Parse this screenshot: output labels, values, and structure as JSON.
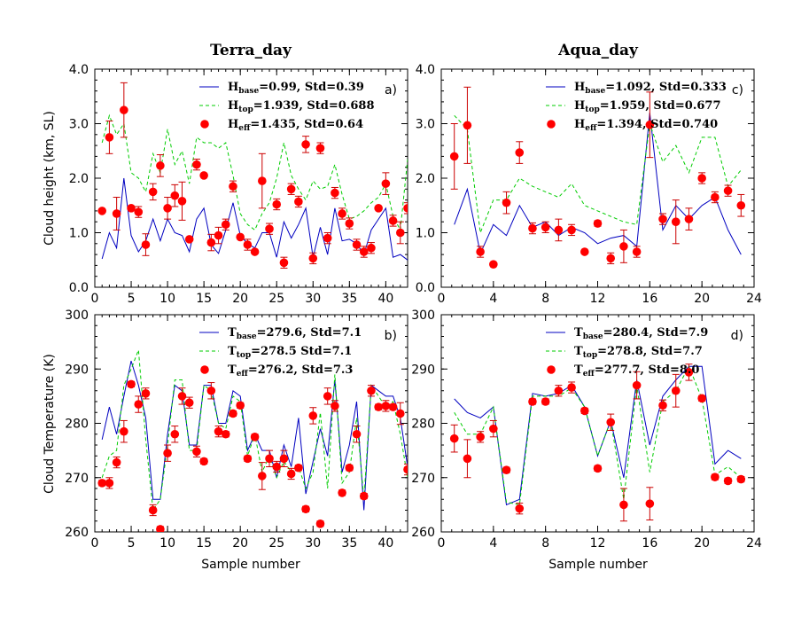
{
  "colors": {
    "base": "#0000c0",
    "top": "#00cc00",
    "eff": "#ff0000",
    "errorbar": "#cc0000",
    "axis": "#000000"
  },
  "columns": [
    {
      "title": "Terra_day"
    },
    {
      "title": "Aqua_day"
    }
  ],
  "ylabels": {
    "top": "Cloud height (km, SL)",
    "bottom": "Cloud Temperature (K)"
  },
  "xlabel": "Sample number",
  "chart_data": [
    {
      "type": "line",
      "panel": "a)",
      "title": "Terra_day",
      "ylabel": "Cloud height (km, SL)",
      "xlim": [
        0,
        43
      ],
      "ylim": [
        0,
        4
      ],
      "xticks": [
        0,
        5,
        10,
        15,
        20,
        25,
        30,
        35,
        40
      ],
      "yticks": [
        0.0,
        1.0,
        2.0,
        3.0,
        4.0
      ],
      "ytick_labels": [
        "0.0",
        "1.0",
        "2.0",
        "3.0",
        "4.0"
      ],
      "x": [
        1,
        2,
        3,
        4,
        5,
        6,
        7,
        8,
        9,
        10,
        11,
        12,
        13,
        14,
        15,
        16,
        17,
        18,
        19,
        20,
        21,
        22,
        23,
        24,
        25,
        26,
        27,
        28,
        29,
        30,
        31,
        32,
        33,
        34,
        35,
        36,
        37,
        38,
        39,
        40,
        41,
        42,
        43
      ],
      "legend": [
        {
          "prefix": "H",
          "sub": "base",
          "text": "=0.99, Std=0.39"
        },
        {
          "prefix": "H",
          "sub": "top",
          "text": "=1.939, Std=0.688"
        },
        {
          "prefix": "H",
          "sub": "eff",
          "text": "=1.435, Std=0.64"
        }
      ],
      "series": [
        {
          "name": "H_base",
          "style": "solid",
          "values": [
            0.52,
            1.0,
            0.72,
            2.0,
            0.95,
            0.65,
            0.85,
            1.25,
            0.85,
            1.25,
            1.0,
            0.95,
            0.65,
            1.25,
            1.45,
            0.78,
            0.62,
            1.05,
            1.55,
            0.95,
            0.8,
            0.72,
            1.0,
            1.0,
            0.55,
            1.2,
            0.9,
            1.15,
            1.45,
            0.55,
            1.1,
            0.6,
            1.45,
            0.85,
            0.88,
            0.8,
            0.6,
            1.05,
            1.25,
            1.45,
            0.55,
            0.6,
            0.5
          ]
        },
        {
          "name": "H_top",
          "style": "dashed",
          "values": [
            2.65,
            3.15,
            2.8,
            3.0,
            2.1,
            2.0,
            1.75,
            2.45,
            2.1,
            2.9,
            2.25,
            2.5,
            1.9,
            2.75,
            2.65,
            2.65,
            2.55,
            2.65,
            2.05,
            1.35,
            1.15,
            1.05,
            1.35,
            1.55,
            2.0,
            2.65,
            2.05,
            1.8,
            1.6,
            1.95,
            1.8,
            1.85,
            2.25,
            1.7,
            1.25,
            1.3,
            1.4,
            1.55,
            1.65,
            1.9,
            1.3,
            1.05,
            2.35
          ]
        },
        {
          "name": "H_eff",
          "style": "markers",
          "values": [
            1.4,
            2.75,
            1.35,
            3.25,
            1.45,
            1.38,
            0.78,
            1.75,
            2.23,
            1.45,
            1.68,
            1.58,
            0.88,
            2.25,
            2.05,
            0.82,
            0.95,
            1.15,
            1.85,
            0.92,
            0.78,
            0.65,
            1.95,
            1.07,
            1.52,
            0.45,
            1.8,
            1.57,
            2.62,
            0.53,
            2.55,
            0.9,
            1.73,
            1.35,
            1.17,
            0.78,
            0.65,
            0.72,
            1.45,
            1.9,
            1.22,
            1.0,
            1.45
          ],
          "errors": [
            0,
            0.3,
            0.3,
            0.5,
            0,
            0.1,
            0.2,
            0.15,
            0.2,
            0.2,
            0.2,
            0.35,
            0,
            0.1,
            0,
            0.15,
            0.15,
            0.1,
            0.1,
            0,
            0.1,
            0,
            0.5,
            0.1,
            0.1,
            0.1,
            0.1,
            0.1,
            0.15,
            0.1,
            0.1,
            0.1,
            0.1,
            0.1,
            0.1,
            0.1,
            0.1,
            0.1,
            0,
            0.2,
            0.1,
            0.2,
            0.1
          ]
        }
      ]
    },
    {
      "type": "line",
      "panel": "c)",
      "title": "Aqua_day",
      "ylabel": "",
      "xlim": [
        0,
        24
      ],
      "ylim": [
        0,
        4
      ],
      "xticks": [
        0,
        4,
        8,
        12,
        16,
        20,
        24
      ],
      "yticks": [
        0.0,
        1.0,
        2.0,
        3.0,
        4.0
      ],
      "ytick_labels": [
        "0.0",
        "1.0",
        "2.0",
        "3.0",
        "4.0"
      ],
      "x": [
        1,
        2,
        3,
        4,
        5,
        6,
        7,
        8,
        9,
        10,
        11,
        12,
        13,
        14,
        15,
        16,
        17,
        18,
        19,
        20,
        21,
        22,
        23
      ],
      "legend": [
        {
          "prefix": "H",
          "sub": "base",
          "text": "=1.092, Std=0.333"
        },
        {
          "prefix": "H",
          "sub": "top",
          "text": "=1.959, Std=0.677"
        },
        {
          "prefix": "H",
          "sub": "eff",
          "text": "=1.394, Std=0.740"
        }
      ],
      "series": [
        {
          "name": "H_base",
          "style": "solid",
          "values": [
            1.15,
            1.8,
            0.62,
            1.15,
            0.95,
            1.5,
            1.1,
            1.2,
            0.95,
            1.1,
            1.0,
            0.8,
            0.9,
            0.95,
            0.75,
            3.2,
            1.05,
            1.5,
            1.25,
            1.5,
            1.65,
            1.05,
            0.6
          ]
        },
        {
          "name": "H_top",
          "style": "dashed",
          "values": [
            3.15,
            2.9,
            1.0,
            1.6,
            1.6,
            2.0,
            1.85,
            1.75,
            1.65,
            1.9,
            1.5,
            1.4,
            1.3,
            1.2,
            1.15,
            3.0,
            2.3,
            2.6,
            2.1,
            2.75,
            2.75,
            1.85,
            2.15
          ]
        },
        {
          "name": "H_eff",
          "style": "markers",
          "values": [
            2.4,
            2.97,
            0.65,
            0.42,
            1.55,
            2.47,
            1.08,
            1.1,
            1.05,
            1.05,
            0.65,
            1.17,
            0.53,
            0.75,
            0.65,
            2.98,
            1.25,
            1.2,
            1.25,
            2.0,
            1.65,
            1.77,
            1.5
          ],
          "errors": [
            0.6,
            0.7,
            0.1,
            0,
            0.2,
            0.2,
            0.1,
            0.1,
            0.2,
            0.1,
            0,
            0.05,
            0.1,
            0.3,
            0.1,
            0.6,
            0.1,
            0.4,
            0.2,
            0.1,
            0.1,
            0.1,
            0.2
          ]
        }
      ]
    },
    {
      "type": "line",
      "panel": "b)",
      "title": "",
      "ylabel": "Cloud Temperature (K)",
      "xlim": [
        0,
        43
      ],
      "ylim": [
        260,
        300
      ],
      "xticks": [
        0,
        5,
        10,
        15,
        20,
        25,
        30,
        35,
        40
      ],
      "yticks": [
        260,
        270,
        280,
        290,
        300
      ],
      "ytick_labels": [
        "260",
        "270",
        "280",
        "290",
        "300"
      ],
      "x": [
        1,
        2,
        3,
        4,
        5,
        6,
        7,
        8,
        9,
        10,
        11,
        12,
        13,
        14,
        15,
        16,
        17,
        18,
        19,
        20,
        21,
        22,
        23,
        24,
        25,
        26,
        27,
        28,
        29,
        30,
        31,
        32,
        33,
        34,
        35,
        36,
        37,
        38,
        39,
        40,
        41,
        42,
        43
      ],
      "legend": [
        {
          "prefix": "T",
          "sub": "base",
          "text": "=279.6, Std=7.1"
        },
        {
          "prefix": "T",
          "sub": "top",
          "text": "=278.5 Std=7.1"
        },
        {
          "prefix": "T",
          "sub": "eff",
          "text": "=276.2, Std=7.3"
        }
      ],
      "series": [
        {
          "name": "T_base",
          "style": "solid",
          "values": [
            277,
            283,
            278,
            285,
            291.5,
            287,
            281,
            266,
            266,
            278,
            287,
            286,
            276,
            276,
            287,
            287,
            280,
            280,
            286,
            285,
            275,
            278,
            275,
            275,
            270,
            276,
            272,
            281,
            267,
            273,
            279,
            274,
            288,
            271,
            276,
            284,
            264,
            287,
            286,
            285,
            285,
            281,
            272
          ]
        },
        {
          "name": "T_top",
          "style": "dashed",
          "values": [
            270,
            274,
            275,
            287,
            290,
            293.5,
            277,
            264,
            266,
            276,
            288,
            288,
            275,
            275,
            287,
            286,
            280,
            279,
            285,
            284,
            274,
            278,
            271,
            274,
            270,
            273,
            271,
            272,
            268,
            271,
            282,
            268,
            289,
            269,
            271,
            281,
            266,
            287,
            285,
            283,
            284,
            278,
            270
          ]
        },
        {
          "name": "T_eff",
          "style": "markers",
          "values": [
            269,
            269,
            272.8,
            278.5,
            287.2,
            283.5,
            285.5,
            264,
            260.5,
            274.5,
            278,
            285,
            283.8,
            274.8,
            273,
            286,
            278.5,
            278,
            281.8,
            283.3,
            273.5,
            277.5,
            270.3,
            273.5,
            272,
            273.5,
            270.7,
            271.8,
            264.2,
            281.4,
            261.5,
            285,
            283.2,
            267.2,
            271.8,
            278,
            266.6,
            286,
            283,
            283.2,
            283,
            281.8,
            271.5
          ],
          "errors": [
            0.5,
            1,
            1,
            2,
            0.5,
            1.5,
            1,
            1,
            0.5,
            1.5,
            1.5,
            1.5,
            1,
            1,
            0.5,
            1.5,
            1,
            0.5,
            0.5,
            0.5,
            0.5,
            0.5,
            2.5,
            1.5,
            1,
            1.5,
            1,
            0.5,
            0.5,
            1.5,
            0.5,
            1.5,
            1,
            0.5,
            0.5,
            1.5,
            0.5,
            1,
            0.5,
            1,
            0.5,
            2,
            1
          ]
        }
      ]
    },
    {
      "type": "line",
      "panel": "d)",
      "title": "",
      "ylabel": "",
      "xlim": [
        0,
        24
      ],
      "ylim": [
        260,
        300
      ],
      "xticks": [
        0,
        4,
        8,
        12,
        16,
        20,
        24
      ],
      "yticks": [
        260,
        270,
        280,
        290,
        300
      ],
      "ytick_labels": [
        "260",
        "270",
        "280",
        "290",
        "300"
      ],
      "x": [
        1,
        2,
        3,
        4,
        5,
        6,
        7,
        8,
        9,
        10,
        11,
        12,
        13,
        14,
        15,
        16,
        17,
        18,
        19,
        20,
        21,
        22,
        23
      ],
      "legend": [
        {
          "prefix": "T",
          "sub": "base",
          "text": "=280.4, Std=7.9"
        },
        {
          "prefix": "T",
          "sub": "top",
          "text": "=278.8, Std=7.7"
        },
        {
          "prefix": "T",
          "sub": "eff",
          "text": "=277.7, Std=8.0"
        }
      ],
      "series": [
        {
          "name": "T_base",
          "style": "solid",
          "values": [
            284.5,
            282,
            281,
            283,
            265,
            266,
            285.5,
            285,
            285.5,
            287,
            283,
            274,
            280.5,
            270,
            288,
            276,
            285,
            288,
            290.5,
            290.5,
            272.5,
            275,
            273.5
          ]
        },
        {
          "name": "T_top",
          "style": "dashed",
          "values": [
            282,
            278,
            278,
            283,
            265.5,
            265,
            285,
            285,
            285,
            286.5,
            283,
            274,
            280.5,
            266,
            287,
            271,
            284,
            286,
            290.5,
            284.5,
            270.5,
            272,
            270
          ]
        },
        {
          "name": "T_eff",
          "style": "markers",
          "values": [
            277.2,
            273.5,
            277.5,
            279,
            271.4,
            264.3,
            284,
            284,
            286,
            286.6,
            282.3,
            271.7,
            280.2,
            265,
            287,
            265.2,
            283.3,
            286,
            289.4,
            284.6,
            270.1,
            269.4,
            269.7
          ],
          "errors": [
            2.5,
            3.5,
            1,
            1.5,
            0.5,
            1,
            0.5,
            0.5,
            1,
            1,
            0.5,
            0.5,
            1.5,
            3,
            2.5,
            3,
            1,
            3,
            1.5,
            0.5,
            0.5,
            0.5,
            0.5
          ]
        }
      ]
    }
  ]
}
